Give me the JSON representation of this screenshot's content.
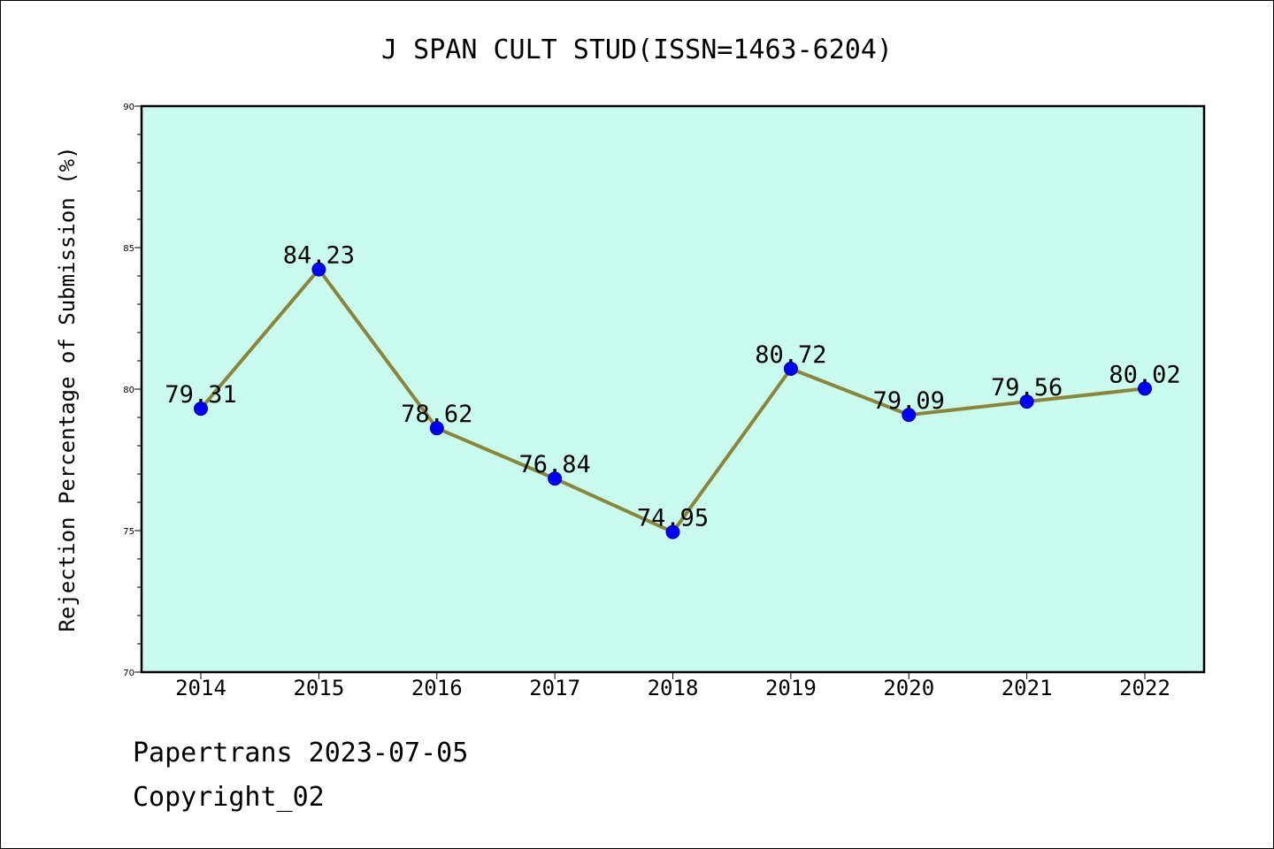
{
  "chart_data": {
    "type": "line",
    "title": "J SPAN CULT STUD(ISSN=1463-6204)",
    "xlabel": "",
    "ylabel": "Rejection Percentage of Submission (%)",
    "categories": [
      "2014",
      "2015",
      "2016",
      "2017",
      "2018",
      "2019",
      "2020",
      "2021",
      "2022"
    ],
    "series": [
      {
        "values": [
          79.31,
          84.23,
          78.62,
          76.84,
          74.95,
          80.72,
          79.09,
          79.56,
          80.02
        ],
        "labels": [
          "79.31",
          "84.23",
          "78.62",
          "76.84",
          "74.95",
          "80.72",
          "79.09",
          "79.56",
          "80.02"
        ]
      }
    ],
    "ylim": [
      70,
      90
    ],
    "yticks": [
      "70",
      "75",
      "80",
      "85",
      "90"
    ],
    "grid": false,
    "colors": {
      "plot_background": "#c8fbee",
      "line": "#8b8538",
      "marker": "#0000ff"
    }
  },
  "footer": {
    "source": "Papertrans 2023-07-05",
    "copyright": "Copyright_02"
  }
}
